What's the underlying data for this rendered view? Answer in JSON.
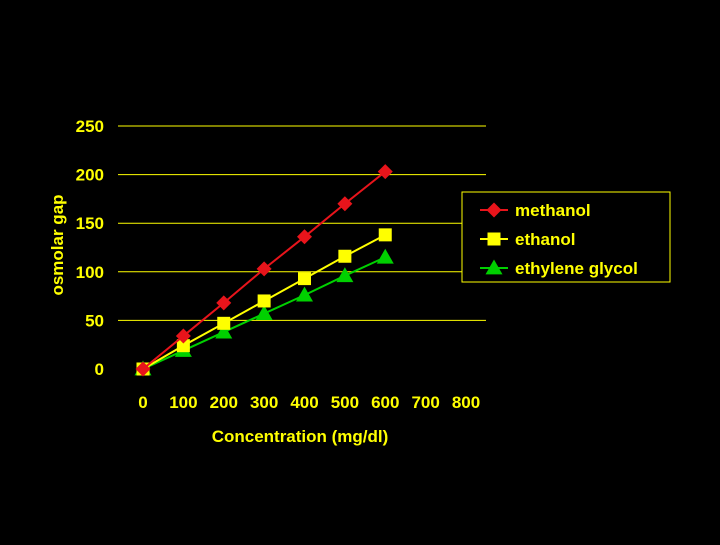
{
  "chart_data": {
    "type": "line",
    "title": "",
    "xlabel": "Concentration (mg/dl)",
    "ylabel": "osmolar gap",
    "xlim": [
      0,
      800
    ],
    "ylim": [
      0,
      250
    ],
    "x_ticks": [
      "0",
      "100",
      "200",
      "300",
      "400",
      "500",
      "600",
      "700",
      "800"
    ],
    "y_ticks": [
      "0",
      "50",
      "100",
      "150",
      "200",
      "250"
    ],
    "grid": true,
    "legend_position": "right",
    "series": [
      {
        "name": "methanol",
        "color": "#e8141b",
        "marker": "diamond",
        "x": [
          0,
          100,
          200,
          300,
          400,
          500,
          600
        ],
        "y": [
          0,
          34,
          68,
          103,
          136,
          170,
          203
        ]
      },
      {
        "name": "ethanol",
        "color": "#ffff00",
        "marker": "square",
        "x": [
          0,
          100,
          200,
          300,
          400,
          500,
          600
        ],
        "y": [
          0,
          24,
          47,
          70,
          93,
          116,
          138
        ]
      },
      {
        "name": "ethylene glycol",
        "color": "#00d000",
        "marker": "triangle",
        "x": [
          0,
          100,
          200,
          300,
          400,
          500,
          600
        ],
        "y": [
          0,
          19,
          38,
          57,
          76,
          96,
          115
        ]
      }
    ]
  }
}
